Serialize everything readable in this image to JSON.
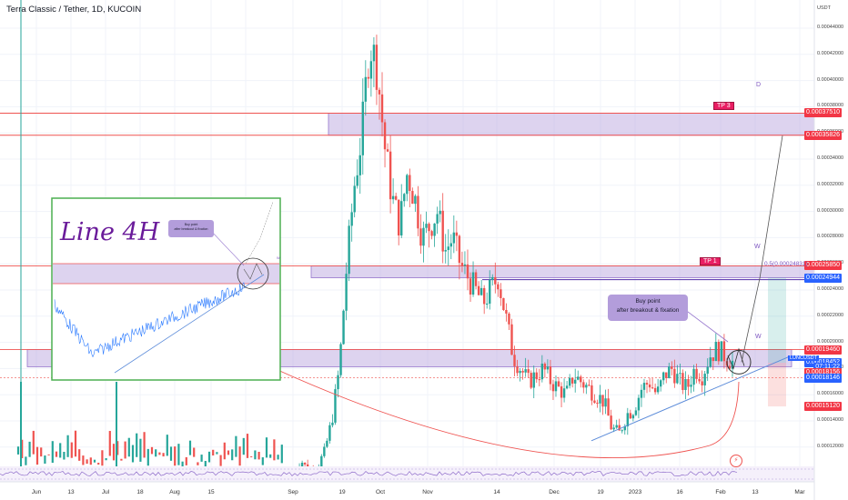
{
  "header": {
    "symbol_title": "Terra Classic / Tether, 1D, KUCOIN"
  },
  "colors": {
    "up": "#26a69a",
    "down": "#ef5350",
    "zone": "#b39ddb",
    "accent_blue": "#2962ff",
    "tag_red": "#f23645",
    "tag_blue": "#2962ff",
    "inset_green": "#4caf50",
    "trend_blue": "#5b8bd9"
  },
  "price_axis": {
    "currency": "USDT",
    "ticks": [
      "0.00044000",
      "0.00042000",
      "0.00040000",
      "0.00038000",
      "0.00036000",
      "0.00034000",
      "0.00032000",
      "0.00030000",
      "0.00028000",
      "0.00026000",
      "0.00024000",
      "0.00022000",
      "0.00020000",
      "0.00018000",
      "0.00016000",
      "0.00014000",
      "0.00012000"
    ],
    "tags": [
      {
        "text": "0.00037510",
        "color": "red",
        "price": 0.0003751
      },
      {
        "text": "0.00035826",
        "color": "red",
        "price": 0.00035826
      },
      {
        "text": "0.00025850",
        "color": "red",
        "price": 0.0002585
      },
      {
        "text": "0.00024944",
        "color": "blue",
        "price": 0.00024944
      },
      {
        "text": "0.00019460",
        "color": "red",
        "price": 0.0001946
      },
      {
        "text": "0.00018452",
        "color": "blue",
        "price": 0.00018452
      },
      {
        "text": "07:11:22",
        "color": "blue",
        "price": 0.000181
      },
      {
        "text": "0.00018156",
        "color": "red",
        "price": 0.000177
      },
      {
        "text": "0.00018146",
        "color": "blue",
        "price": 0.000173
      },
      {
        "text": "0.00015120",
        "color": "red",
        "price": 0.0001512
      }
    ],
    "ticker_label": "LUNCUSDT",
    "ticker_price": 0.0001845
  },
  "time_axis": {
    "labels": [
      "Jun",
      "13",
      "Jul",
      "18",
      "Aug",
      "15",
      "Sep",
      "19",
      "Oct",
      "Nov",
      "14",
      "Dec",
      "19",
      "2023",
      "16",
      "Feb",
      "13",
      "Mar"
    ]
  },
  "annotations": {
    "tp3": "TP 3",
    "tp1": "TP 1",
    "fib": "0.5(0.00024831)",
    "wave_d": "D",
    "wave_w1": "W",
    "wave_w2": "W",
    "buy_point_line1": "Buy point",
    "buy_point_line2": "after breakout & fixation",
    "inset_title": "Line 4H",
    "inset_buy_line1": "Buy point",
    "inset_buy_line2": "after breakout & fixation",
    "inset_w": "W",
    "lightning": "⚡"
  },
  "chart_data": {
    "type": "candlestick",
    "title": "Terra Classic / Tether, 1D, KUCOIN",
    "ylim": [
      0.000105,
      0.000455
    ],
    "close_series": [
      0.0001,
      0.00011,
      0.0001,
      0.000105,
      0.000115,
      0.00014,
      0.00018,
      0.00026,
      0.00032,
      0.00036,
      0.00043,
      0.00041,
      0.00035,
      0.00031,
      0.00029,
      0.00033,
      0.00031,
      0.00028,
      0.00029,
      0.0003,
      0.00027,
      0.00028,
      0.00026,
      0.00025,
      0.00024,
      0.00023,
      0.00024,
      0.00025,
      0.00022,
      0.00019,
      0.00018,
      0.00017,
      0.000175,
      0.00018,
      0.00017,
      0.000165,
      0.00016,
      0.000175,
      0.00017,
      0.000165,
      0.00016,
      0.000155,
      0.000135,
      0.00013,
      0.000145,
      0.00015,
      0.000165,
      0.00017,
      0.00016,
      0.000175,
      0.00018,
      0.00017,
      0.000165,
      0.00018,
      0.000175,
      0.00019,
      0.000195,
      0.00019,
      0.000185
    ]
  }
}
